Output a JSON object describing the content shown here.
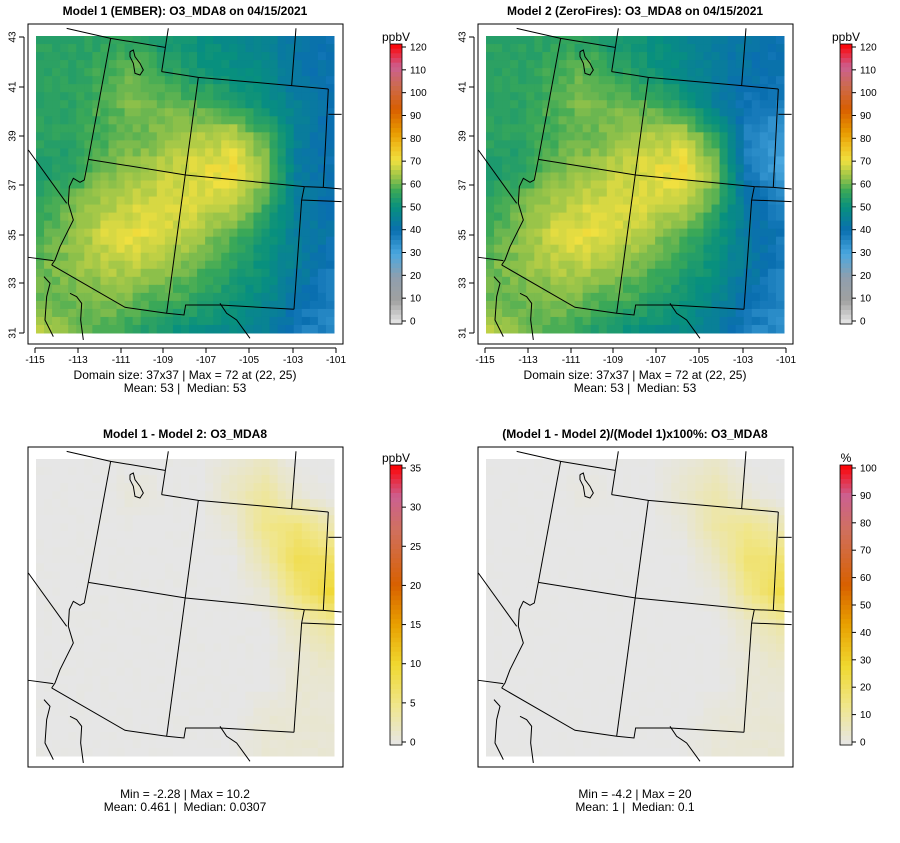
{
  "chart_data": [
    {
      "type": "heatmap",
      "title": "Model 1 (EMBER): O3_MDA8 on 04/15/2021",
      "units": "ppbV",
      "xlim": [
        -115,
        -101.5
      ],
      "ylim": [
        31,
        43
      ],
      "xticks": [
        "-115",
        "-113",
        "-111",
        "-109",
        "-107",
        "-105",
        "-103",
        "-101"
      ],
      "yticks": [
        "43",
        "41",
        "39",
        "37",
        "35",
        "33",
        "31"
      ],
      "colorbar_ticks": [
        "120",
        "110",
        "100",
        "90",
        "80",
        "70",
        "60",
        "50",
        "40",
        "30",
        "20",
        "10",
        "0"
      ],
      "colorbar_range": [
        0,
        120
      ],
      "grid_size": "37x37",
      "coarse_grid_rows_north_to_south": [
        [
          55,
          55,
          55,
          55,
          52,
          50,
          48,
          45,
          42,
          40
        ],
        [
          55,
          55,
          58,
          60,
          55,
          52,
          50,
          48,
          42,
          40
        ],
        [
          55,
          55,
          58,
          62,
          60,
          58,
          55,
          50,
          45,
          40
        ],
        [
          55,
          55,
          58,
          60,
          62,
          65,
          66,
          58,
          45,
          40
        ],
        [
          52,
          55,
          60,
          63,
          66,
          69,
          71,
          63,
          44,
          40
        ],
        [
          55,
          60,
          64,
          67,
          68,
          68,
          67,
          58,
          44,
          40
        ],
        [
          58,
          62,
          68,
          70,
          68,
          64,
          59,
          52,
          44,
          41
        ],
        [
          60,
          62,
          65,
          66,
          63,
          59,
          55,
          50,
          44,
          39
        ],
        [
          60,
          60,
          62,
          60,
          58,
          55,
          52,
          48,
          41,
          37
        ],
        [
          65,
          60,
          58,
          55,
          52,
          50,
          48,
          45,
          38,
          36
        ]
      ],
      "stats": [
        "Domain size: 37x37 | Max = 72 at (22, 25)",
        "Mean: 53 |  Median: 53"
      ]
    },
    {
      "type": "heatmap",
      "title": "Model 2 (ZeroFires): O3_MDA8 on 04/15/2021",
      "units": "ppbV",
      "xlim": [
        -115,
        -101.5
      ],
      "ylim": [
        31,
        43
      ],
      "xticks": [
        "-115",
        "-113",
        "-111",
        "-109",
        "-107",
        "-105",
        "-103",
        "-101"
      ],
      "yticks": [
        "43",
        "41",
        "39",
        "37",
        "35",
        "33",
        "31"
      ],
      "colorbar_ticks": [
        "120",
        "110",
        "100",
        "90",
        "80",
        "70",
        "60",
        "50",
        "40",
        "30",
        "20",
        "10",
        "0"
      ],
      "colorbar_range": [
        0,
        120
      ],
      "derived": "model1 - difference",
      "stats": [
        "Domain size: 37x37 | Max = 72 at (22, 25)",
        "Mean: 53 |  Median: 53"
      ]
    },
    {
      "type": "heatmap",
      "title": "Model 1 - Model 2: O3_MDA8",
      "units": "ppbV",
      "colorbar_ticks": [
        "35",
        "30",
        "25",
        "20",
        "15",
        "10",
        "5",
        "0"
      ],
      "colorbar_range": [
        0,
        35
      ],
      "coarse_grid_rows_north_to_south": [
        [
          0,
          0,
          0,
          0,
          0,
          0,
          1,
          2,
          0,
          0
        ],
        [
          0,
          0,
          0,
          0.8,
          0,
          0,
          2,
          4,
          1,
          0
        ],
        [
          0,
          0,
          0,
          0,
          0,
          0,
          1,
          5,
          6,
          3
        ],
        [
          0,
          0,
          0,
          0,
          0,
          0,
          0,
          3,
          8,
          7
        ],
        [
          0,
          0,
          0,
          0,
          0,
          0,
          0,
          1,
          6,
          9.5
        ],
        [
          0,
          0,
          0,
          0,
          0,
          0,
          0,
          0,
          2,
          4
        ],
        [
          0,
          0,
          0,
          0,
          0,
          0,
          0,
          0,
          1,
          2
        ],
        [
          0,
          0,
          0,
          0,
          0,
          0,
          0,
          0,
          1,
          1
        ],
        [
          0,
          0,
          0,
          0,
          0,
          0,
          0,
          1,
          1,
          1
        ],
        [
          0,
          0,
          0,
          0,
          0,
          0,
          0,
          1,
          1,
          1
        ]
      ],
      "stats": [
        "Min = -2.28 | Max = 10.2",
        "Mean: 0.461 |  Median: 0.0307"
      ]
    },
    {
      "type": "heatmap",
      "title": "(Model 1 - Model 2)/(Model 1)x100%: O3_MDA8",
      "units": "%",
      "colorbar_ticks": [
        "100",
        "90",
        "80",
        "70",
        "60",
        "50",
        "40",
        "30",
        "20",
        "10",
        "0"
      ],
      "colorbar_range": [
        0,
        100
      ],
      "derived": "difference / model1 x 100",
      "stats": [
        "Min = -4.2 | Max = 20",
        "Mean: 1 |  Median: 0.1"
      ]
    }
  ],
  "colors": {
    "ppbv_scale": [
      [
        0,
        "#e8e8e8"
      ],
      [
        10,
        "#a0a0a0"
      ],
      [
        20,
        "#8f9fae"
      ],
      [
        30,
        "#4aa8e0"
      ],
      [
        40,
        "#0a6fb0"
      ],
      [
        50,
        "#08907e"
      ],
      [
        57,
        "#3aa858"
      ],
      [
        62,
        "#8cc04a"
      ],
      [
        70,
        "#f0e040"
      ],
      [
        76,
        "#f0c020"
      ],
      [
        82,
        "#e89a00"
      ],
      [
        92,
        "#d85e00"
      ],
      [
        102,
        "#cc6a50"
      ],
      [
        110,
        "#cc6090"
      ],
      [
        120,
        "#ff0000"
      ]
    ],
    "diff_scale": [
      [
        0,
        "#e6e6e6"
      ],
      [
        5,
        "#f0e68a"
      ],
      [
        10,
        "#f0d830"
      ],
      [
        15,
        "#e8a000"
      ],
      [
        20,
        "#d86000"
      ],
      [
        27,
        "#d07060"
      ],
      [
        31,
        "#cc6090"
      ],
      [
        35,
        "#ff0000"
      ]
    ],
    "pct_scale": [
      [
        0,
        "#e6e6e6"
      ],
      [
        14,
        "#f0e68a"
      ],
      [
        28,
        "#f0d830"
      ],
      [
        43,
        "#e8a000"
      ],
      [
        57,
        "#d86000"
      ],
      [
        77,
        "#d07060"
      ],
      [
        89,
        "#cc6090"
      ],
      [
        100,
        "#ff0000"
      ]
    ]
  }
}
